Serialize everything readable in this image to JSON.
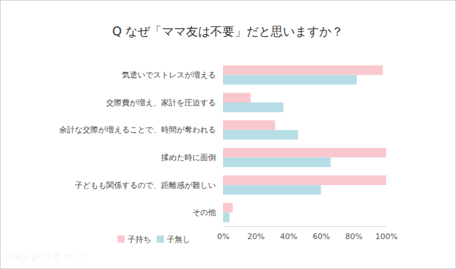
{
  "chart_data": {
    "type": "bar",
    "orientation": "horizontal",
    "title": "Q なぜ「ママ友は不要」だと思いますか？",
    "categories": [
      "気遣いでストレスが増える",
      "交際費が増え、家計を圧迫する",
      "余計な交際が増えることで、時間が奪われる",
      "揉めた時に面倒",
      "子どもも関係するので、距離感が難しい",
      "その他"
    ],
    "series": [
      {
        "name": "子持ち",
        "color": "#f9c8cf",
        "values": [
          98,
          17,
          32,
          100,
          100,
          6
        ]
      },
      {
        "name": "子無し",
        "color": "#b6dde6",
        "values": [
          82,
          37,
          46,
          66,
          60,
          4
        ]
      }
    ],
    "xlim": [
      0,
      100
    ],
    "xticks": [
      {
        "value": 0,
        "label": "0%"
      },
      {
        "value": 20,
        "label": "20%"
      },
      {
        "value": 40,
        "label": "40%"
      },
      {
        "value": 60,
        "label": "60%"
      },
      {
        "value": 80,
        "label": "80%"
      },
      {
        "value": 100,
        "label": "100%"
      }
    ],
    "grid": false,
    "legend": "bottom",
    "annotations": [
      "めちゃコミック"
    ]
  }
}
